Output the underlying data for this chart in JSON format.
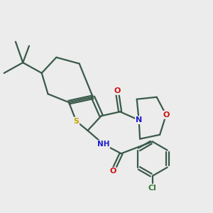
{
  "bg_color": "#ececec",
  "bond_color": "#3a5a4a",
  "S_color": "#c8a000",
  "N_color": "#1a1acc",
  "O_color": "#cc1111",
  "Cl_color": "#3a7a3a",
  "line_width": 1.6,
  "figsize": [
    3.0,
    3.0
  ],
  "dpi": 100,
  "xlim": [
    0,
    10
  ],
  "ylim": [
    0,
    10
  ]
}
